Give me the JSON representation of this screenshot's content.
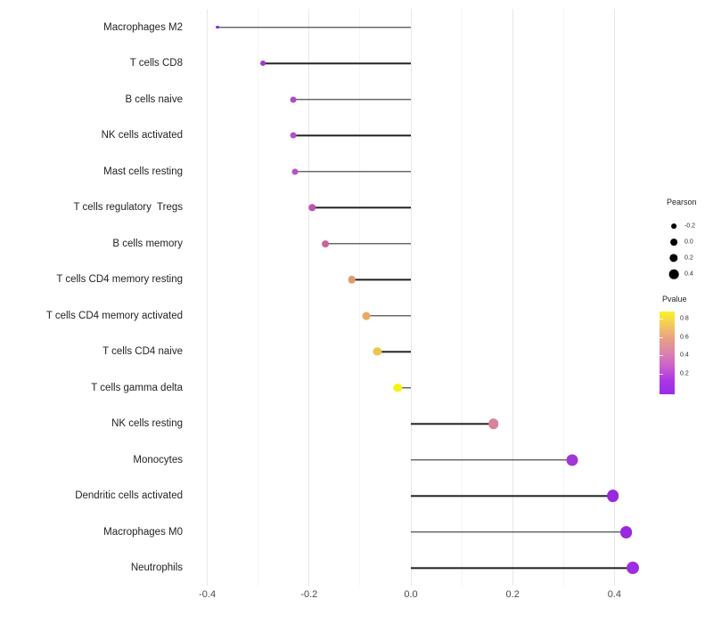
{
  "chart_data": {
    "type": "lollipop",
    "title": "",
    "x_axis": {
      "ticks": [
        -0.4,
        -0.2,
        0.0,
        0.2,
        0.4
      ],
      "tick_labels": [
        "-0.4",
        "-0.2",
        "0.0",
        "0.2",
        "0.4"
      ],
      "minor_ticks": [
        -0.3,
        -0.1,
        0.1,
        0.3
      ],
      "range": [
        -0.44,
        0.48
      ]
    },
    "points": [
      {
        "label": "Macrophages M2",
        "pearson": -0.38,
        "color": "#8326dd"
      },
      {
        "label": "T cells CD8",
        "pearson": -0.29,
        "color": "#a335d2"
      },
      {
        "label": "B cells naive",
        "pearson": -0.231,
        "color": "#ad4cca"
      },
      {
        "label": "NK cells activated",
        "pearson": -0.231,
        "color": "#b151c8"
      },
      {
        "label": "Mast cells resting",
        "pearson": -0.227,
        "color": "#b455c6"
      },
      {
        "label": "T cells regulatory  Tregs",
        "pearson": -0.194,
        "color": "#c253ae"
      },
      {
        "label": "B cells memory",
        "pearson": -0.168,
        "color": "#cb649c"
      },
      {
        "label": "T cells CD4 memory resting",
        "pearson": -0.116,
        "color": "#e39a73"
      },
      {
        "label": "T cells CD4 memory activated",
        "pearson": -0.088,
        "color": "#e9a95e"
      },
      {
        "label": "T cells CD4 naive",
        "pearson": -0.066,
        "color": "#edc44d"
      },
      {
        "label": "T cells gamma delta",
        "pearson": -0.026,
        "color": "#f6f312"
      },
      {
        "label": "NK cells resting",
        "pearson": 0.162,
        "color": "#d9839a"
      },
      {
        "label": "Monocytes",
        "pearson": 0.317,
        "color": "#a136d8"
      },
      {
        "label": "Dendritic cells activated",
        "pearson": 0.397,
        "color": "#9a28dd"
      },
      {
        "label": "Macrophages M0",
        "pearson": 0.423,
        "color": "#9a28e0"
      },
      {
        "label": "Neutrophils",
        "pearson": 0.436,
        "color": "#9d2de2"
      }
    ],
    "legend_size": {
      "title": "Pearson",
      "dot_color": "#000000",
      "entries": [
        {
          "value": -0.2,
          "label": "-0.2"
        },
        {
          "value": 0.0,
          "label": "0.0"
        },
        {
          "value": 0.2,
          "label": "0.2"
        },
        {
          "value": 0.4,
          "label": "0.4"
        }
      ]
    },
    "legend_color": {
      "title": "Pvalue",
      "tick_labels": [
        "0.8",
        "0.6",
        "0.4",
        "0.2"
      ],
      "gradient_top_to_bottom": [
        "#f9f326",
        "#f2c75f",
        "#e9a086",
        "#dc83ad",
        "#c95ecd",
        "#ab38e5",
        "#9b2be8"
      ]
    }
  },
  "colors": {
    "stem": "#222222",
    "gridline_major": "#e8e8e8",
    "gridline_minor": "#f4f4f4",
    "axis_text": "#4a4a4a"
  }
}
